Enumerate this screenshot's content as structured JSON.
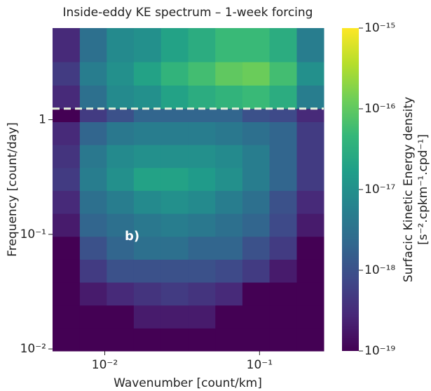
{
  "chart_data": {
    "type": "heatmap",
    "title": "Inside-eddy KE spectrum – 1-week forcing",
    "xlabel": "Wavenumber [count/km]",
    "ylabel": "Frequency [count/day]",
    "xscale": "log",
    "yscale": "log",
    "xlim": [
      0.0046,
      0.26
    ],
    "ylim": [
      0.0096,
      6.3
    ],
    "xticks": [
      {
        "value": 0.01,
        "label": "10⁻²"
      },
      {
        "value": 0.1,
        "label": "10⁻¹"
      }
    ],
    "yticks": [
      {
        "value": 0.01,
        "label": "10⁻²"
      },
      {
        "value": 0.1,
        "label": "10⁻¹"
      },
      1
    ],
    "x_edges": [
      0.0046,
      0.0069,
      0.0103,
      0.0154,
      0.0231,
      0.0346,
      0.0518,
      0.0775,
      0.116,
      0.174,
      0.26
    ],
    "y_edges": [
      0.0096,
      0.0152,
      0.0241,
      0.0382,
      0.0605,
      0.0959,
      0.152,
      0.241,
      0.382,
      0.605,
      0.959,
      1.25,
      2.0,
      3.2,
      6.3
    ],
    "z": [
      [
        1e-19,
        1e-19,
        1e-19,
        1e-19,
        1e-19,
        1e-19,
        1e-19,
        1e-19,
        1e-19,
        1e-19
      ],
      [
        1e-19,
        1e-19,
        1e-19,
        2e-19,
        2e-19,
        2e-19,
        1e-19,
        1e-19,
        1e-19,
        1e-19
      ],
      [
        1e-19,
        2e-19,
        3e-19,
        4e-19,
        5e-19,
        4e-19,
        3e-19,
        1e-19,
        1e-19,
        1e-19
      ],
      [
        1e-19,
        5e-19,
        1e-18,
        1e-18,
        1e-18,
        1e-18,
        8e-19,
        5e-19,
        2e-19,
        1e-19
      ],
      [
        1e-19,
        1e-18,
        2e-18,
        3e-18,
        3e-18,
        2e-18,
        2e-18,
        1e-18,
        5e-19,
        1e-19
      ],
      [
        2e-19,
        2e-18,
        3e-18,
        4e-18,
        5e-18,
        4e-18,
        3e-18,
        2e-18,
        8e-19,
        2e-19
      ],
      [
        3e-19,
        3e-18,
        5e-18,
        8e-18,
        1e-17,
        8e-18,
        5e-18,
        3e-18,
        1e-18,
        3e-19
      ],
      [
        5e-19,
        5e-18,
        1e-17,
        2e-17,
        2e-17,
        1.5e-17,
        1e-17,
        5e-18,
        2e-18,
        5e-19
      ],
      [
        4e-19,
        4e-18,
        8e-18,
        1e-17,
        1e-17,
        1e-17,
        8e-18,
        5e-18,
        2e-18,
        5e-19
      ],
      [
        3e-19,
        2e-18,
        4e-18,
        5e-18,
        5e-18,
        5e-18,
        4e-18,
        3e-18,
        2e-18,
        5e-19
      ],
      [
        1e-19,
        5e-19,
        1e-18,
        2e-18,
        2e-18,
        2e-18,
        2e-18,
        1e-18,
        8e-19,
        3e-19
      ],
      [
        3e-19,
        3e-18,
        8e-18,
        1e-17,
        2e-17,
        3e-17,
        4e-17,
        5e-17,
        3e-17,
        5e-18
      ],
      [
        5e-19,
        5e-18,
        1e-17,
        2e-17,
        4e-17,
        6e-17,
        1e-16,
        1.2e-16,
        6e-17,
        1e-17
      ],
      [
        3e-19,
        3e-18,
        8e-18,
        1e-17,
        2e-17,
        3e-17,
        5e-17,
        5e-17,
        3e-17,
        5e-18
      ]
    ],
    "colormap": "viridis",
    "clim": [
      1e-19,
      1e-15
    ],
    "cticks": [
      {
        "value": 1e-19,
        "label": "10⁻¹⁹"
      },
      {
        "value": 1e-18,
        "label": "10⁻¹⁸"
      },
      {
        "value": 1e-17,
        "label": "10⁻¹⁷"
      },
      {
        "value": 1e-16,
        "label": "10⁻¹⁶"
      },
      {
        "value": 1e-15,
        "label": "10⁻¹⁵"
      }
    ],
    "colorbar_label": [
      "Surfacic Kinetic Energy density",
      "[s⁻².cpkm⁻¹.cpd⁻¹]"
    ],
    "hline": {
      "value": 1.25,
      "color": "#e8f2dc"
    },
    "annotation": "b)"
  }
}
